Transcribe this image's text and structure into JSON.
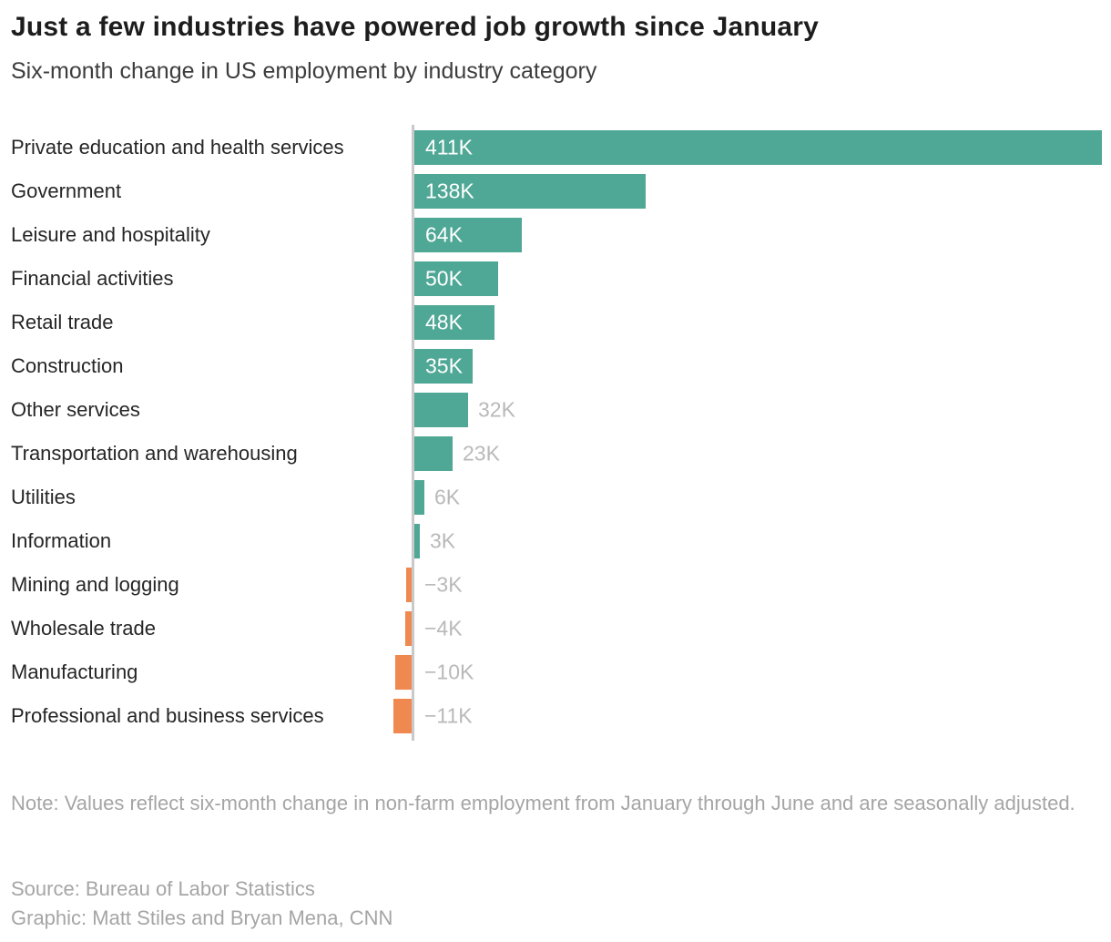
{
  "header": {
    "title": "Just a few industries have powered job growth since January",
    "subtitle": "Six-month change in US employment by industry category"
  },
  "chart_data": {
    "type": "bar",
    "orientation": "horizontal",
    "title": "Just a few industries have powered job growth since January",
    "subtitle": "Six-month change in US employment by industry category",
    "unit": "thousands of jobs",
    "xlim": [
      -11,
      411
    ],
    "grid": false,
    "legend": false,
    "categories": [
      "Private education and health services",
      "Government",
      "Leisure and hospitality",
      "Financial activities",
      "Retail trade",
      "Construction",
      "Other services",
      "Transportation and warehousing",
      "Utilities",
      "Information",
      "Mining and logging",
      "Wholesale trade",
      "Manufacturing",
      "Professional and business services"
    ],
    "values": [
      411,
      138,
      64,
      50,
      48,
      35,
      32,
      23,
      6,
      3,
      -3,
      -4,
      -10,
      -11
    ],
    "labels": [
      "411K",
      "138K",
      "64K",
      "50K",
      "48K",
      "35K",
      "32K",
      "23K",
      "6K",
      "3K",
      "−3K",
      "−4K",
      "−10K",
      "−11K"
    ],
    "label_placement": [
      "inside",
      "inside",
      "inside",
      "inside",
      "inside",
      "inside",
      "outside",
      "outside",
      "outside",
      "outside",
      "outside",
      "outside",
      "outside",
      "outside"
    ],
    "colors": {
      "positive_bar": "#4FA796",
      "negative_bar": "#EF8950",
      "axis_line": "#C9C9C9",
      "inside_label": "#FFFFFF",
      "outside_label": "#B9B9B9",
      "category_label": "#262626",
      "title": "#1D1D1D",
      "subtitle": "#3D3D3D",
      "footnote": "#A5A5A5"
    }
  },
  "footer": {
    "note": "Note: Values reflect six-month change in non-farm employment from January through June and are seasonally adjusted.",
    "source": "Source: Bureau of Labor Statistics",
    "credit": "Graphic: Matt Stiles and Bryan Mena, CNN"
  }
}
